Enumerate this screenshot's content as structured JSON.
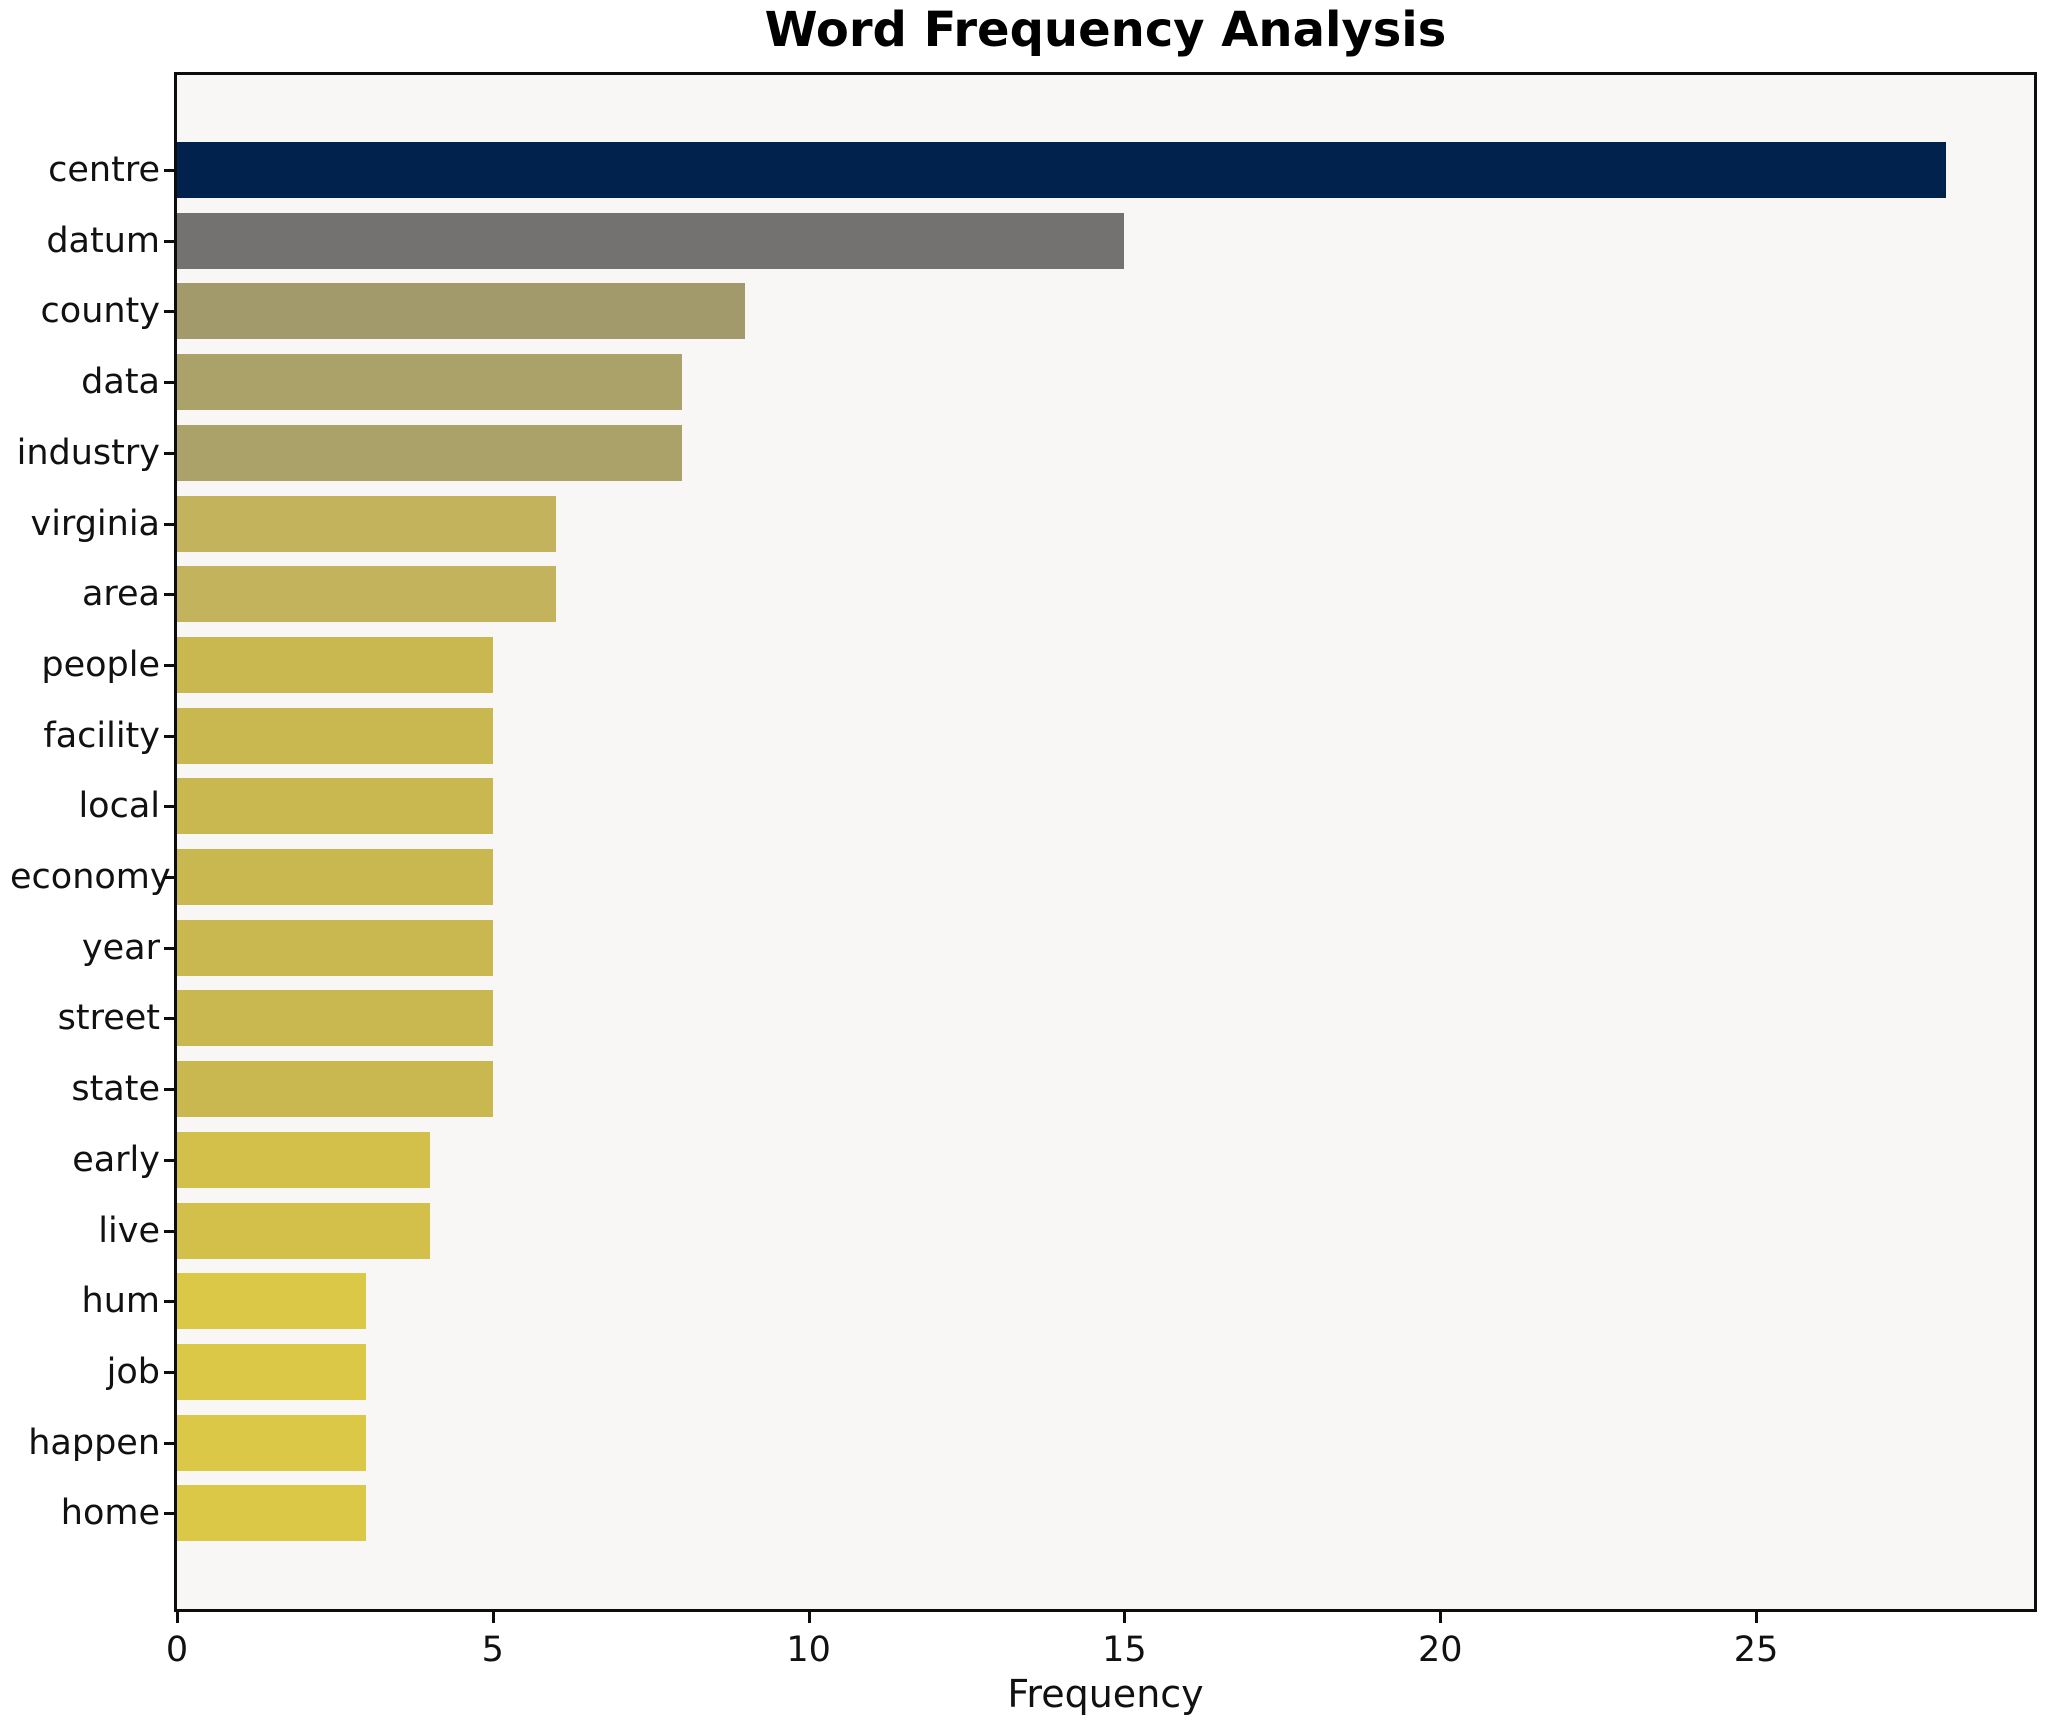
{
  "title": "Word Frequency Analysis",
  "xlabel": "Frequency",
  "chart_data": {
    "type": "bar",
    "orientation": "horizontal",
    "title": "Word Frequency Analysis",
    "xlabel": "Frequency",
    "ylabel": "",
    "categories": [
      "centre",
      "datum",
      "county",
      "data",
      "industry",
      "virginia",
      "area",
      "people",
      "facility",
      "local",
      "economy",
      "year",
      "street",
      "state",
      "early",
      "live",
      "hum",
      "job",
      "happen",
      "home"
    ],
    "values": [
      28,
      15,
      9,
      8,
      8,
      6,
      6,
      5,
      5,
      5,
      5,
      5,
      5,
      5,
      4,
      4,
      3,
      3,
      3,
      3
    ],
    "bar_colors": [
      "#00224d",
      "#737271",
      "#a39a6c",
      "#aba269",
      "#aba269",
      "#c4b35d",
      "#c4b35d",
      "#c9b750",
      "#c9b750",
      "#c9b750",
      "#c9b750",
      "#c9b750",
      "#c9b750",
      "#c9b750",
      "#d2c04b",
      "#d2c04b",
      "#dcc847",
      "#dcc847",
      "#dcc847",
      "#dcc847"
    ],
    "xlim": [
      0,
      29.4
    ],
    "x_ticks": [
      0,
      5,
      10,
      15,
      20,
      25
    ],
    "grid": false,
    "legend": false,
    "plot_background": "#f8f7f5",
    "figure_background": "#ffffff",
    "spine_color": "#0d0d0d"
  }
}
